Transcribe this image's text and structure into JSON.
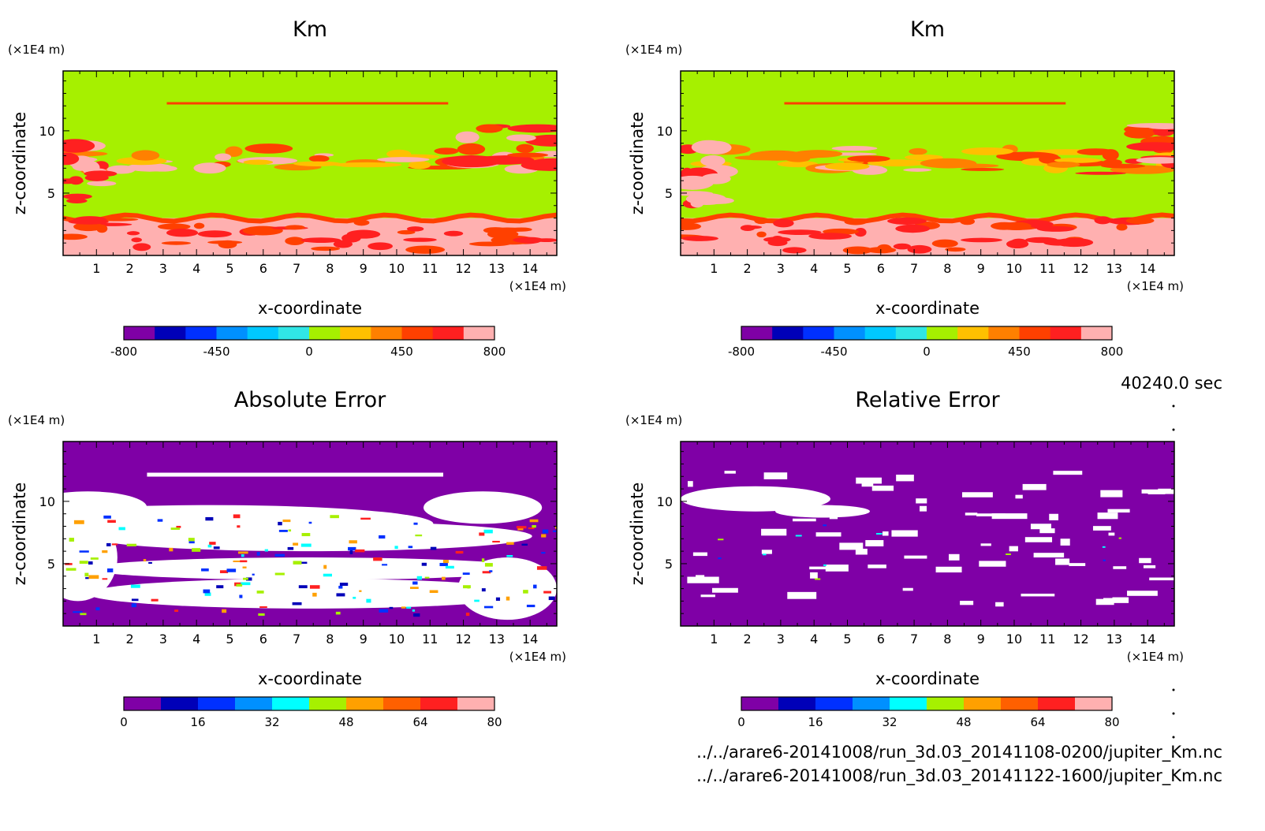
{
  "footer": {
    "time": "40240.0 sec",
    "file1": "../../arare6-20141008/run_3d.03_20141108-0200/jupiter_Km.nc",
    "file2": "../../arare6-20141008/run_3d.03_20141122-1600/jupiter_Km.nc"
  },
  "chart_data": [
    {
      "type": "heatmap",
      "title": "Km",
      "xlabel": "x-coordinate",
      "ylabel": "z-coordinate",
      "xunit": "(×1E4 m)",
      "yunit": "(×1E4 m)",
      "xlim": [
        0,
        14.8
      ],
      "ylim": [
        0,
        14.8
      ],
      "xticks": [
        "1",
        "2",
        "3",
        "4",
        "5",
        "6",
        "7",
        "8",
        "9",
        "10",
        "11",
        "12",
        "13",
        "14"
      ],
      "yticks": [
        "5",
        "10"
      ],
      "colorbar": {
        "labels": [
          "-800",
          "-450",
          "0",
          "450",
          "800"
        ],
        "colors": [
          "#7f00a6",
          "#0000b8",
          "#0030ff",
          "#0090ff",
          "#00c8ff",
          "#30e6e6",
          "#a6f000",
          "#ffc000",
          "#ff8000",
          "#ff4000",
          "#ff2020",
          "#ffb0b0"
        ]
      },
      "bands": [
        {
          "level": "high",
          "zmin": 0,
          "zmax": 3.0,
          "color": "#ffb0b0"
        },
        {
          "level": "mid",
          "zmin": 3.0,
          "zmax": 6.5,
          "color": "#a6f000"
        },
        {
          "level": "mixed",
          "zmin": 6.5,
          "zmax": 8.8,
          "color": "#ff8000"
        },
        {
          "level": "mid",
          "zmin": 8.8,
          "zmax": 14.8,
          "color": "#a6f000"
        }
      ]
    },
    {
      "type": "heatmap",
      "title": "Km",
      "xlabel": "x-coordinate",
      "ylabel": "z-coordinate",
      "xunit": "(×1E4 m)",
      "yunit": "(×1E4 m)",
      "xlim": [
        0,
        14.8
      ],
      "ylim": [
        0,
        14.8
      ],
      "xticks": [
        "1",
        "2",
        "3",
        "4",
        "5",
        "6",
        "7",
        "8",
        "9",
        "10",
        "11",
        "12",
        "13",
        "14"
      ],
      "yticks": [
        "5",
        "10"
      ],
      "colorbar": {
        "labels": [
          "-800",
          "-450",
          "0",
          "450",
          "800"
        ],
        "colors": [
          "#7f00a6",
          "#0000b8",
          "#0030ff",
          "#0090ff",
          "#00c8ff",
          "#30e6e6",
          "#a6f000",
          "#ffc000",
          "#ff8000",
          "#ff4000",
          "#ff2020",
          "#ffb0b0"
        ]
      }
    },
    {
      "type": "heatmap",
      "title": "Absolute Error",
      "xlabel": "x-coordinate",
      "ylabel": "z-coordinate",
      "xunit": "(×1E4 m)",
      "yunit": "(×1E4 m)",
      "xlim": [
        0,
        14.8
      ],
      "ylim": [
        0,
        14.8
      ],
      "xticks": [
        "1",
        "2",
        "3",
        "4",
        "5",
        "6",
        "7",
        "8",
        "9",
        "10",
        "11",
        "12",
        "13",
        "14"
      ],
      "yticks": [
        "5",
        "10"
      ],
      "colorbar": {
        "labels": [
          "0",
          "16",
          "32",
          "48",
          "64",
          "80"
        ],
        "colors": [
          "#7f00a6",
          "#0000b8",
          "#0030ff",
          "#0090ff",
          "#00ffff",
          "#a6f000",
          "#ffa000",
          "#ff6000",
          "#ff2020",
          "#ffb0b0"
        ]
      }
    },
    {
      "type": "heatmap",
      "title": "Relative Error",
      "xlabel": "x-coordinate",
      "ylabel": "z-coordinate",
      "xunit": "(×1E4 m)",
      "yunit": "(×1E4 m)",
      "xlim": [
        0,
        14.8
      ],
      "ylim": [
        0,
        14.8
      ],
      "xticks": [
        "1",
        "2",
        "3",
        "4",
        "5",
        "6",
        "7",
        "8",
        "9",
        "10",
        "11",
        "12",
        "13",
        "14"
      ],
      "yticks": [
        "5",
        "10"
      ],
      "colorbar": {
        "labels": [
          "0",
          "16",
          "32",
          "48",
          "64",
          "80"
        ],
        "colors": [
          "#7f00a6",
          "#0000b8",
          "#0030ff",
          "#0090ff",
          "#00ffff",
          "#a6f000",
          "#ffa000",
          "#ff6000",
          "#ff2020",
          "#ffb0b0"
        ]
      }
    }
  ]
}
